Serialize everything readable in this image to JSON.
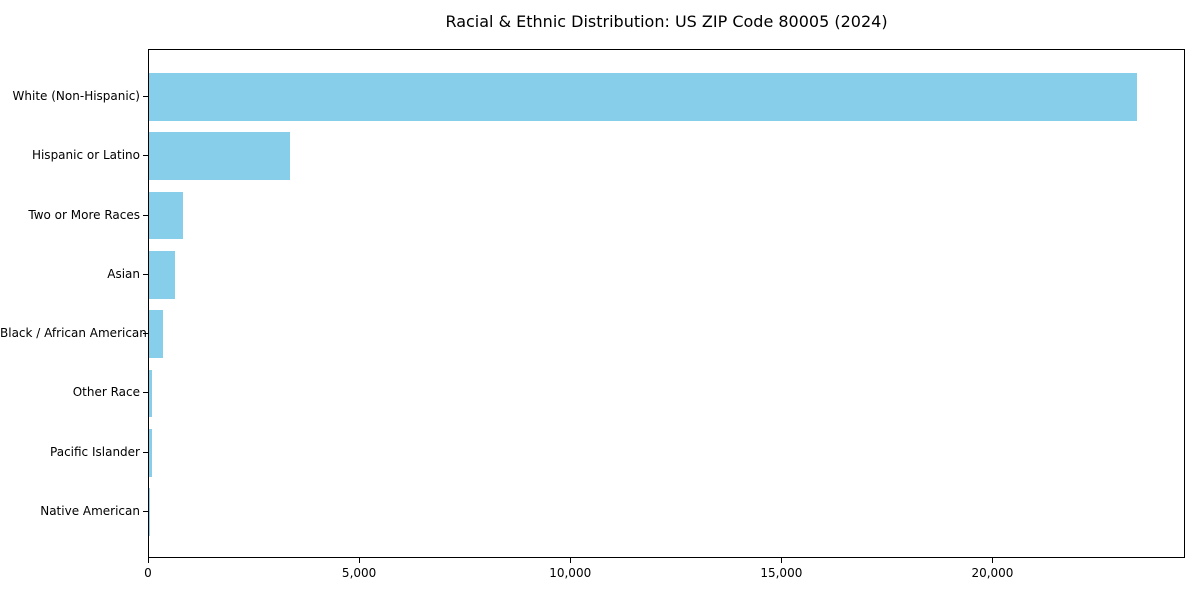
{
  "title": "Racial & Ethnic Distribution: US ZIP Code 80005 (2024)",
  "colors": {
    "bar": "#87CEEB",
    "axis": "#000000",
    "background": "#FFFFFF",
    "text": "#000000"
  },
  "chart_data": {
    "type": "bar",
    "orientation": "horizontal",
    "title": "Racial & Ethnic Distribution: US ZIP Code 80005 (2024)",
    "categories": [
      "White (Non-Hispanic)",
      "Hispanic or Latino",
      "Two or More Races",
      "Asian",
      "Black / African American",
      "Other Race",
      "Pacific Islander",
      "Native American"
    ],
    "values": [
      23390,
      3350,
      805,
      625,
      320,
      75,
      70,
      10
    ],
    "xlabel": "",
    "ylabel": "",
    "xlim": [
      0,
      24560
    ],
    "xticks": [
      0,
      5000,
      10000,
      15000,
      20000
    ],
    "xtick_labels": [
      "0",
      "5,000",
      "10,000",
      "15,000",
      "20,000"
    ],
    "grid": false,
    "legend": null,
    "bar_color": "#87CEEB"
  }
}
